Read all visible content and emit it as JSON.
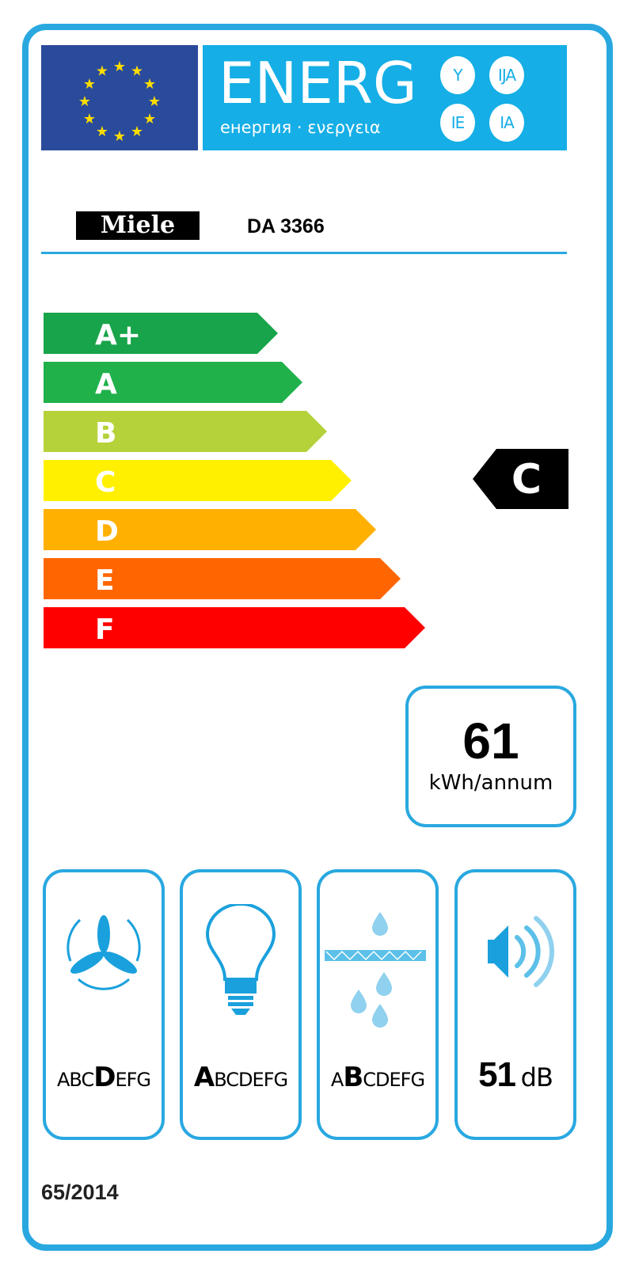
{
  "header": {
    "title": "ENERG",
    "subtitle": "енергия · ενεργεια",
    "suffixes": [
      "Y",
      "IJA",
      "IE",
      "IA"
    ],
    "flag_color": "#2a4b9b",
    "header_color": "#15aee6"
  },
  "product": {
    "brand": "Miele",
    "model": "DA 3366"
  },
  "scale": [
    {
      "label": "A+",
      "color": "#18a44a"
    },
    {
      "label": "A",
      "color": "#20b14b"
    },
    {
      "label": "B",
      "color": "#b5d23a"
    },
    {
      "label": "C",
      "color": "#fff000"
    },
    {
      "label": "D",
      "color": "#ffb000"
    },
    {
      "label": "E",
      "color": "#ff6600"
    },
    {
      "label": "F",
      "color": "#ff0000"
    }
  ],
  "rating": {
    "class": "C"
  },
  "consumption": {
    "value": "61",
    "unit": "kWh/annum"
  },
  "pictograms": [
    {
      "icon": "fan-icon",
      "letters": [
        "A",
        "B",
        "C",
        "D",
        "E",
        "F",
        "G"
      ],
      "selected": "D"
    },
    {
      "icon": "light-bulb-icon",
      "letters": [
        "A",
        "B",
        "C",
        "D",
        "E",
        "F",
        "G"
      ],
      "selected": "A"
    },
    {
      "icon": "grease-filter-icon",
      "letters": [
        "A",
        "B",
        "C",
        "D",
        "E",
        "F",
        "G"
      ],
      "selected": "B"
    },
    {
      "icon": "noise-speaker-icon",
      "value": "51",
      "unit": "dB"
    }
  ],
  "regulation": "65/2014"
}
